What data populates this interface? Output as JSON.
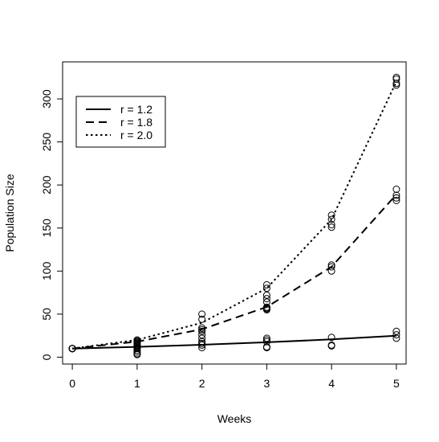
{
  "chart_data": {
    "type": "line",
    "title": "",
    "xlabel": "Weeks",
    "ylabel": "Population Size",
    "xlim": [
      -0.15,
      5.15
    ],
    "ylim": [
      -8,
      343
    ],
    "xticks": [
      0,
      1,
      2,
      3,
      4,
      5
    ],
    "yticks": [
      0,
      50,
      100,
      150,
      200,
      250,
      300
    ],
    "grid": false,
    "legend_position": "top-left",
    "series": [
      {
        "name": "r = 1.2",
        "dash": "solid",
        "x": [
          0,
          1,
          2,
          3,
          4,
          5
        ],
        "y": [
          10,
          12,
          14.4,
          17.3,
          20.7,
          24.9
        ]
      },
      {
        "name": "r = 1.8",
        "dash": "dashed",
        "x": [
          0,
          1,
          2,
          3,
          4,
          5
        ],
        "y": [
          10,
          18,
          32.4,
          58.3,
          105,
          189
        ]
      },
      {
        "name": "r = 2.0",
        "dash": "dotted",
        "x": [
          0,
          1,
          2,
          3,
          4,
          5
        ],
        "y": [
          10,
          20,
          40,
          80,
          160,
          320
        ]
      }
    ],
    "points": [
      [
        0,
        10
      ],
      [
        0,
        10
      ],
      [
        0,
        10
      ],
      [
        0,
        10
      ],
      [
        0,
        10
      ],
      [
        0,
        10
      ],
      [
        0,
        10
      ],
      [
        0,
        10
      ],
      [
        0,
        10
      ],
      [
        0,
        10
      ],
      [
        0,
        10
      ],
      [
        0,
        10
      ],
      [
        0,
        10
      ],
      [
        0,
        10
      ],
      [
        0,
        10
      ],
      [
        1,
        20
      ],
      [
        1,
        19
      ],
      [
        1,
        18
      ],
      [
        1,
        17
      ],
      [
        1,
        16
      ],
      [
        1,
        15
      ],
      [
        1,
        14
      ],
      [
        1,
        13
      ],
      [
        1,
        12
      ],
      [
        1,
        11
      ],
      [
        1,
        10
      ],
      [
        1,
        8
      ],
      [
        1,
        6
      ],
      [
        1,
        4
      ],
      [
        1,
        3
      ],
      [
        2,
        50
      ],
      [
        2,
        44
      ],
      [
        2,
        34
      ],
      [
        2,
        32
      ],
      [
        2,
        30
      ],
      [
        2,
        26
      ],
      [
        2,
        22
      ],
      [
        2,
        18
      ],
      [
        2,
        16
      ],
      [
        2,
        14
      ],
      [
        2,
        11
      ],
      [
        3,
        84
      ],
      [
        3,
        80
      ],
      [
        3,
        72
      ],
      [
        3,
        68
      ],
      [
        3,
        64
      ],
      [
        3,
        58
      ],
      [
        3,
        57
      ],
      [
        3,
        56
      ],
      [
        3,
        55
      ],
      [
        3,
        22
      ],
      [
        3,
        20
      ],
      [
        3,
        18
      ],
      [
        3,
        12
      ],
      [
        3,
        11
      ],
      [
        4,
        165
      ],
      [
        4,
        160
      ],
      [
        4,
        154
      ],
      [
        4,
        151
      ],
      [
        4,
        107
      ],
      [
        4,
        105
      ],
      [
        4,
        100
      ],
      [
        4,
        23
      ],
      [
        4,
        14
      ],
      [
        4,
        13
      ],
      [
        5,
        325
      ],
      [
        5,
        323
      ],
      [
        5,
        318
      ],
      [
        5,
        316
      ],
      [
        5,
        195
      ],
      [
        5,
        188
      ],
      [
        5,
        185
      ],
      [
        5,
        182
      ],
      [
        5,
        30
      ],
      [
        5,
        26
      ],
      [
        5,
        22
      ]
    ]
  }
}
